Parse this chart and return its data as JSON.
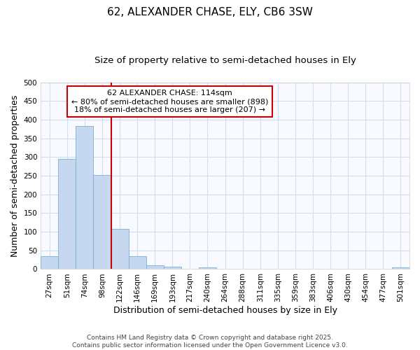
{
  "title": "62, ALEXANDER CHASE, ELY, CB6 3SW",
  "subtitle": "Size of property relative to semi-detached houses in Ely",
  "xlabel": "Distribution of semi-detached houses by size in Ely",
  "ylabel": "Number of semi-detached properties",
  "bar_color": "#c5d8f0",
  "bar_edge_color": "#7bafd4",
  "background_color": "#ffffff",
  "plot_bg_color": "#f8faff",
  "grid_color": "#d0dff0",
  "categories": [
    "27sqm",
    "51sqm",
    "74sqm",
    "98sqm",
    "122sqm",
    "146sqm",
    "169sqm",
    "193sqm",
    "217sqm",
    "240sqm",
    "264sqm",
    "288sqm",
    "311sqm",
    "335sqm",
    "359sqm",
    "383sqm",
    "406sqm",
    "430sqm",
    "454sqm",
    "477sqm",
    "501sqm"
  ],
  "values": [
    35,
    295,
    383,
    253,
    107,
    35,
    10,
    6,
    0,
    4,
    0,
    0,
    0,
    0,
    0,
    0,
    0,
    0,
    0,
    0,
    4
  ],
  "ylim": [
    0,
    500
  ],
  "yticks": [
    0,
    50,
    100,
    150,
    200,
    250,
    300,
    350,
    400,
    450,
    500
  ],
  "property_line_x": 4.0,
  "annotation_title": "62 ALEXANDER CHASE: 114sqm",
  "annotation_smaller": "← 80% of semi-detached houses are smaller (898)",
  "annotation_larger": "18% of semi-detached houses are larger (207) →",
  "annotation_box_color": "#ffffff",
  "annotation_box_edge_color": "#cc0000",
  "vertical_line_color": "#cc0000",
  "footer_line1": "Contains HM Land Registry data © Crown copyright and database right 2025.",
  "footer_line2": "Contains public sector information licensed under the Open Government Licence v3.0.",
  "title_fontsize": 11,
  "subtitle_fontsize": 9.5,
  "tick_fontsize": 7.5,
  "label_fontsize": 9,
  "annotation_fontsize": 8,
  "footer_fontsize": 6.5
}
